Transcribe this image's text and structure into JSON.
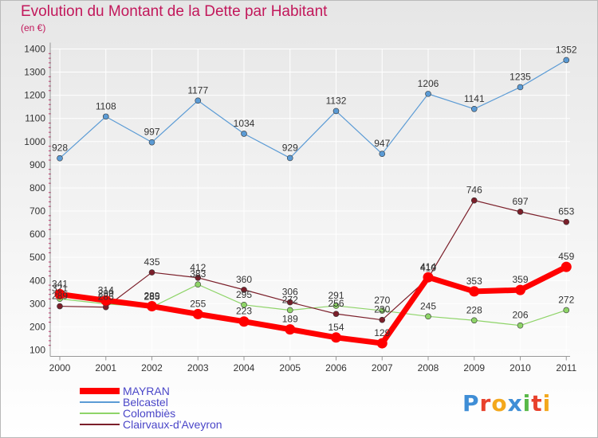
{
  "chart_data": {
    "type": "line",
    "title": "Evolution du Montant de la Dette par Habitant",
    "subtitle": "(en €)",
    "x": [
      "2000",
      "2001",
      "2002",
      "2003",
      "2004",
      "2005",
      "2006",
      "2007",
      "2008",
      "2009",
      "2010",
      "2011"
    ],
    "ylim": [
      100,
      1400
    ],
    "yticks": [
      100,
      200,
      300,
      400,
      500,
      600,
      700,
      800,
      900,
      1000,
      1100,
      1200,
      1300,
      1400
    ],
    "grid": true,
    "legend_position": "bottom-left",
    "series": [
      {
        "name": "MAYRAN",
        "color": "#ff0000",
        "values": [
          341,
          314,
          289,
          255,
          223,
          189,
          154,
          129,
          414,
          353,
          359,
          459
        ]
      },
      {
        "name": "Belcastel",
        "color": "#5b9bd5",
        "values": [
          928,
          1108,
          997,
          1177,
          1034,
          929,
          1132,
          947,
          1206,
          1141,
          1235,
          1352
        ]
      },
      {
        "name": "Colombiès",
        "color": "#8ed468",
        "values": [
          321,
          299,
          285,
          383,
          295,
          272,
          291,
          270,
          245,
          228,
          206,
          272
        ]
      },
      {
        "name": "Clairvaux-d'Aveyron",
        "color": "#7b1f2a",
        "values": [
          289,
          285,
          435,
          412,
          360,
          306,
          256,
          230,
          410,
          746,
          697,
          653
        ]
      }
    ]
  },
  "logo": {
    "letters": [
      "P",
      "r",
      "o",
      "x",
      "i",
      "t",
      "i"
    ],
    "colors": [
      "#3f8ed6",
      "#e8412c",
      "#f3a81d",
      "#3f8ed6",
      "#58b947",
      "#e8412c",
      "#f3a81d"
    ]
  }
}
